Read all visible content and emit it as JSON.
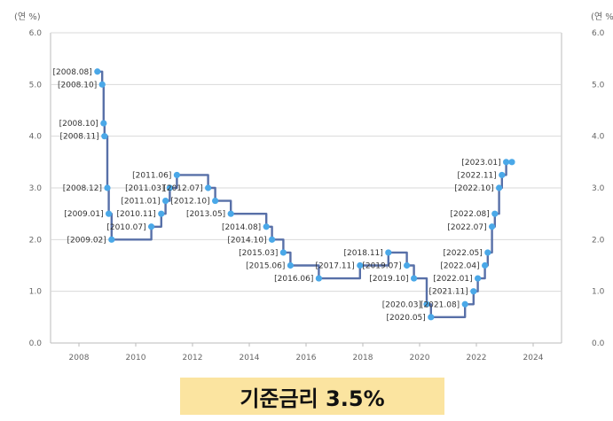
{
  "caption": "기준금리 3.5%",
  "chart_data": {
    "type": "line",
    "step": true,
    "y_unit_label": "(연 %)",
    "ylim": [
      0,
      6
    ],
    "yticks": [
      "0.0",
      "1.0",
      "2.0",
      "3.0",
      "4.0",
      "5.0",
      "6.0"
    ],
    "xlim": [
      2007,
      2025
    ],
    "xticks": [
      "2008",
      "2010",
      "2012",
      "2014",
      "2016",
      "2018",
      "2020",
      "2022",
      "2024"
    ],
    "grid": true,
    "line_color": "#5870a8",
    "point_color": "#4aa8e8",
    "caption_bg": "#fbe4a0",
    "points": [
      {
        "x": 2008.65,
        "y": 5.25,
        "label": "[2008.08]"
      },
      {
        "x": 2008.82,
        "y": 5.0,
        "label": "[2008.10]"
      },
      {
        "x": 2008.87,
        "y": 4.25,
        "label": "[2008.10]"
      },
      {
        "x": 2008.9,
        "y": 4.0,
        "label": "[2008.11]"
      },
      {
        "x": 2009.0,
        "y": 3.0,
        "label": "[2008.12]"
      },
      {
        "x": 2009.05,
        "y": 2.5,
        "label": "[2009.01]"
      },
      {
        "x": 2009.15,
        "y": 2.0,
        "label": "[2009.02]"
      },
      {
        "x": 2010.55,
        "y": 2.25,
        "label": "[2010.07]"
      },
      {
        "x": 2010.9,
        "y": 2.5,
        "label": "[2010.11]"
      },
      {
        "x": 2011.05,
        "y": 2.75,
        "label": "[2011.01]"
      },
      {
        "x": 2011.2,
        "y": 3.0,
        "label": "[2011.03]"
      },
      {
        "x": 2011.45,
        "y": 3.25,
        "label": "[2011.06]"
      },
      {
        "x": 2012.55,
        "y": 3.0,
        "label": "[2012.07]"
      },
      {
        "x": 2012.8,
        "y": 2.75,
        "label": "[2012.10]"
      },
      {
        "x": 2013.35,
        "y": 2.5,
        "label": "[2013.05]"
      },
      {
        "x": 2014.6,
        "y": 2.25,
        "label": "[2014.08]"
      },
      {
        "x": 2014.8,
        "y": 2.0,
        "label": "[2014.10]"
      },
      {
        "x": 2015.2,
        "y": 1.75,
        "label": "[2015.03]"
      },
      {
        "x": 2015.45,
        "y": 1.5,
        "label": "[2015.06]"
      },
      {
        "x": 2016.45,
        "y": 1.25,
        "label": "[2016.06]"
      },
      {
        "x": 2017.9,
        "y": 1.5,
        "label": "[2017.11]"
      },
      {
        "x": 2018.9,
        "y": 1.75,
        "label": "[2018.11]"
      },
      {
        "x": 2019.55,
        "y": 1.5,
        "label": "[2019.07]"
      },
      {
        "x": 2019.8,
        "y": 1.25,
        "label": "[2019.10]"
      },
      {
        "x": 2020.25,
        "y": 0.75,
        "label": "[2020.03]"
      },
      {
        "x": 2020.4,
        "y": 0.5,
        "label": "[2020.05]"
      },
      {
        "x": 2021.6,
        "y": 0.75,
        "label": "[2021.08]"
      },
      {
        "x": 2021.9,
        "y": 1.0,
        "label": "[2021.11]"
      },
      {
        "x": 2022.05,
        "y": 1.25,
        "label": "[2022.01]"
      },
      {
        "x": 2022.3,
        "y": 1.5,
        "label": "[2022.04]"
      },
      {
        "x": 2022.4,
        "y": 1.75,
        "label": "[2022.05]"
      },
      {
        "x": 2022.55,
        "y": 2.25,
        "label": "[2022.07]"
      },
      {
        "x": 2022.65,
        "y": 2.5,
        "label": "[2022.08]"
      },
      {
        "x": 2022.8,
        "y": 3.0,
        "label": "[2022.10]"
      },
      {
        "x": 2022.9,
        "y": 3.25,
        "label": "[2022.11]"
      },
      {
        "x": 2023.05,
        "y": 3.5,
        "label": "[2023.01]"
      },
      {
        "x": 2023.25,
        "y": 3.5,
        "label": ""
      }
    ]
  }
}
